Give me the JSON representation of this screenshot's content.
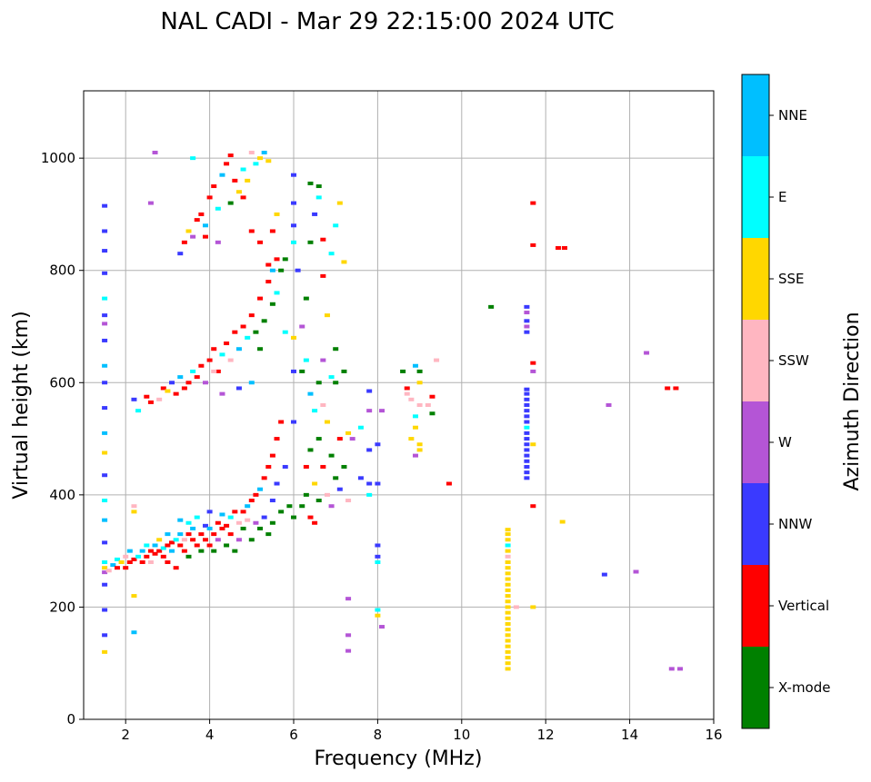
{
  "chart_data": {
    "type": "scatter",
    "title": "NAL CADI - Mar 29 22:15:00 2024 UTC",
    "xlabel": "Frequency (MHz)",
    "ylabel": "Virtual height (km)",
    "xlim": [
      1,
      16
    ],
    "ylim": [
      0,
      1120
    ],
    "xticks": [
      2,
      4,
      6,
      8,
      10,
      12,
      14,
      16
    ],
    "yticks": [
      0,
      200,
      400,
      600,
      800,
      1000
    ],
    "grid": true,
    "colorbar": {
      "label": "Azimuth Direction",
      "categories": [
        "X-mode",
        "Vertical",
        "NNW",
        "W",
        "SSW",
        "SSE",
        "E",
        "NNE"
      ],
      "colors": [
        "#008000",
        "#ff0000",
        "#3a3aff",
        "#b455d6",
        "#ffb6c1",
        "#ffd700",
        "#00ffff",
        "#00bfff"
      ]
    },
    "point_format": [
      "frequency_mhz",
      "virtual_height_km",
      "direction_index"
    ],
    "points": [
      [
        1.5,
        270,
        5
      ],
      [
        1.5,
        280,
        6
      ],
      [
        1.5,
        262,
        3
      ],
      [
        1.5,
        315,
        2
      ],
      [
        1.5,
        355,
        7
      ],
      [
        1.5,
        390,
        6
      ],
      [
        1.5,
        475,
        5
      ],
      [
        1.5,
        510,
        7
      ],
      [
        1.5,
        555,
        2
      ],
      [
        1.5,
        600,
        2
      ],
      [
        1.5,
        630,
        7
      ],
      [
        1.5,
        675,
        2
      ],
      [
        1.5,
        705,
        3
      ],
      [
        1.5,
        750,
        6
      ],
      [
        1.5,
        795,
        2
      ],
      [
        1.5,
        835,
        2
      ],
      [
        1.5,
        870,
        2
      ],
      [
        1.5,
        915,
        2
      ],
      [
        1.5,
        435,
        2
      ],
      [
        1.5,
        240,
        2
      ],
      [
        1.5,
        195,
        2
      ],
      [
        1.5,
        150,
        2
      ],
      [
        1.5,
        120,
        5
      ],
      [
        1.5,
        720,
        2
      ],
      [
        1.6,
        265,
        4
      ],
      [
        1.7,
        275,
        7
      ],
      [
        1.8,
        270,
        1
      ],
      [
        1.8,
        285,
        6
      ],
      [
        1.9,
        280,
        5
      ],
      [
        2.0,
        290,
        4
      ],
      [
        2.0,
        270,
        1
      ],
      [
        2.1,
        280,
        1
      ],
      [
        2.1,
        300,
        7
      ],
      [
        2.2,
        285,
        1
      ],
      [
        2.2,
        370,
        5
      ],
      [
        2.2,
        380,
        4
      ],
      [
        2.2,
        155,
        7
      ],
      [
        2.2,
        220,
        5
      ],
      [
        2.3,
        290,
        6
      ],
      [
        2.4,
        280,
        1
      ],
      [
        2.4,
        300,
        7
      ],
      [
        2.5,
        290,
        1
      ],
      [
        2.5,
        310,
        6
      ],
      [
        2.6,
        300,
        1
      ],
      [
        2.6,
        280,
        4
      ],
      [
        2.7,
        295,
        1
      ],
      [
        2.7,
        310,
        7
      ],
      [
        2.8,
        300,
        1
      ],
      [
        2.8,
        320,
        5
      ],
      [
        2.9,
        290,
        1
      ],
      [
        2.9,
        305,
        6
      ],
      [
        3.0,
        310,
        1
      ],
      [
        3.0,
        330,
        7
      ],
      [
        3.0,
        280,
        1
      ],
      [
        3.1,
        300,
        7
      ],
      [
        3.1,
        315,
        1
      ],
      [
        3.2,
        320,
        6
      ],
      [
        3.2,
        270,
        1
      ],
      [
        3.3,
        310,
        1
      ],
      [
        3.3,
        330,
        7
      ],
      [
        3.3,
        355,
        7
      ],
      [
        3.4,
        300,
        1
      ],
      [
        3.4,
        320,
        4
      ],
      [
        3.5,
        330,
        1
      ],
      [
        3.5,
        350,
        6
      ],
      [
        3.5,
        290,
        0
      ],
      [
        3.6,
        320,
        1
      ],
      [
        3.6,
        340,
        7
      ],
      [
        3.7,
        310,
        1
      ],
      [
        3.7,
        360,
        6
      ],
      [
        3.8,
        330,
        1
      ],
      [
        3.8,
        300,
        0
      ],
      [
        3.9,
        320,
        1
      ],
      [
        3.9,
        345,
        2
      ],
      [
        4.0,
        310,
        1
      ],
      [
        4.0,
        340,
        7
      ],
      [
        4.0,
        370,
        2
      ],
      [
        4.1,
        300,
        0
      ],
      [
        4.1,
        330,
        1
      ],
      [
        4.2,
        350,
        1
      ],
      [
        4.2,
        320,
        3
      ],
      [
        4.3,
        340,
        1
      ],
      [
        4.3,
        365,
        7
      ],
      [
        4.4,
        310,
        0
      ],
      [
        4.4,
        345,
        1
      ],
      [
        4.5,
        360,
        6
      ],
      [
        4.5,
        330,
        1
      ],
      [
        4.6,
        300,
        0
      ],
      [
        4.6,
        370,
        1
      ],
      [
        4.7,
        350,
        4
      ],
      [
        4.7,
        320,
        3
      ],
      [
        4.8,
        370,
        1
      ],
      [
        4.8,
        340,
        0
      ],
      [
        4.9,
        380,
        7
      ],
      [
        4.9,
        355,
        4
      ],
      [
        5.0,
        390,
        1
      ],
      [
        5.0,
        320,
        0
      ],
      [
        5.1,
        400,
        1
      ],
      [
        5.1,
        350,
        3
      ],
      [
        5.2,
        410,
        7
      ],
      [
        5.2,
        340,
        0
      ],
      [
        5.3,
        430,
        1
      ],
      [
        5.3,
        360,
        2
      ],
      [
        5.4,
        450,
        1
      ],
      [
        5.4,
        330,
        0
      ],
      [
        5.5,
        470,
        1
      ],
      [
        5.5,
        390,
        2
      ],
      [
        5.5,
        350,
        0
      ],
      [
        5.6,
        500,
        1
      ],
      [
        5.6,
        420,
        2
      ],
      [
        5.7,
        530,
        1
      ],
      [
        5.7,
        370,
        0
      ],
      [
        5.8,
        450,
        2
      ],
      [
        5.9,
        380,
        0
      ],
      [
        6.0,
        530,
        2
      ],
      [
        6.0,
        360,
        0
      ],
      [
        6.2,
        380,
        0
      ],
      [
        6.3,
        400,
        0
      ],
      [
        6.3,
        450,
        1
      ],
      [
        6.4,
        480,
        0
      ],
      [
        6.4,
        360,
        1
      ],
      [
        6.5,
        420,
        5
      ],
      [
        6.5,
        550,
        6
      ],
      [
        6.6,
        390,
        0
      ],
      [
        6.6,
        500,
        0
      ],
      [
        6.6,
        600,
        0
      ],
      [
        6.7,
        450,
        1
      ],
      [
        6.7,
        640,
        3
      ],
      [
        6.8,
        400,
        4
      ],
      [
        6.8,
        530,
        5
      ],
      [
        6.9,
        470,
        0
      ],
      [
        6.9,
        380,
        3
      ],
      [
        7.0,
        430,
        0
      ],
      [
        7.0,
        600,
        0
      ],
      [
        7.1,
        500,
        1
      ],
      [
        7.1,
        410,
        2
      ],
      [
        7.2,
        450,
        0
      ],
      [
        7.3,
        390,
        4
      ],
      [
        7.3,
        510,
        5
      ],
      [
        6.2,
        620,
        0
      ],
      [
        6.4,
        580,
        7
      ],
      [
        6.5,
        350,
        1
      ],
      [
        6.7,
        560,
        4
      ],
      [
        7.0,
        660,
        0
      ],
      [
        7.2,
        620,
        0
      ],
      [
        6.9,
        610,
        6
      ],
      [
        6.3,
        640,
        6
      ],
      [
        7.4,
        500,
        3
      ],
      [
        7.6,
        430,
        2
      ],
      [
        7.6,
        520,
        6
      ],
      [
        7.8,
        420,
        2
      ],
      [
        7.8,
        480,
        2
      ],
      [
        7.8,
        585,
        2
      ],
      [
        7.8,
        550,
        3
      ],
      [
        7.8,
        400,
        6
      ],
      [
        8.0,
        490,
        2
      ],
      [
        8.0,
        420,
        2
      ],
      [
        8.1,
        550,
        3
      ],
      [
        8.0,
        310,
        2
      ],
      [
        8.0,
        290,
        2
      ],
      [
        8.0,
        280,
        6
      ],
      [
        8.0,
        195,
        6
      ],
      [
        8.0,
        185,
        5
      ],
      [
        8.1,
        165,
        3
      ],
      [
        7.3,
        215,
        3
      ],
      [
        7.3,
        150,
        3
      ],
      [
        7.3,
        122,
        3
      ],
      [
        2.2,
        570,
        2
      ],
      [
        2.3,
        550,
        6
      ],
      [
        2.5,
        575,
        1
      ],
      [
        2.6,
        565,
        1
      ],
      [
        2.8,
        570,
        4
      ],
      [
        2.9,
        590,
        1
      ],
      [
        3.0,
        585,
        5
      ],
      [
        3.1,
        600,
        2
      ],
      [
        3.2,
        580,
        1
      ],
      [
        3.3,
        610,
        7
      ],
      [
        3.4,
        590,
        1
      ],
      [
        3.5,
        600,
        1
      ],
      [
        3.6,
        620,
        6
      ],
      [
        3.7,
        610,
        1
      ],
      [
        3.8,
        630,
        1
      ],
      [
        3.9,
        600,
        3
      ],
      [
        4.0,
        640,
        1
      ],
      [
        4.1,
        660,
        1
      ],
      [
        4.2,
        620,
        1
      ],
      [
        4.3,
        650,
        6
      ],
      [
        4.4,
        670,
        1
      ],
      [
        4.5,
        640,
        4
      ],
      [
        4.6,
        690,
        1
      ],
      [
        4.7,
        660,
        7
      ],
      [
        4.8,
        700,
        1
      ],
      [
        4.9,
        680,
        6
      ],
      [
        5.0,
        720,
        1
      ],
      [
        5.1,
        690,
        0
      ],
      [
        5.2,
        750,
        1
      ],
      [
        5.3,
        710,
        0
      ],
      [
        5.4,
        780,
        1
      ],
      [
        5.5,
        740,
        0
      ],
      [
        5.6,
        760,
        6
      ],
      [
        5.7,
        800,
        0
      ],
      [
        5.8,
        820,
        0
      ],
      [
        6.0,
        850,
        6
      ],
      [
        6.1,
        800,
        2
      ],
      [
        6.2,
        700,
        3
      ],
      [
        6.3,
        750,
        0
      ],
      [
        6.4,
        850,
        0
      ],
      [
        6.5,
        900,
        2
      ],
      [
        6.6,
        950,
        0
      ],
      [
        6.7,
        790,
        1
      ],
      [
        6.8,
        720,
        5
      ],
      [
        6.9,
        830,
        6
      ],
      [
        7.0,
        880,
        6
      ],
      [
        7.1,
        920,
        5
      ],
      [
        7.2,
        815,
        5
      ],
      [
        6.4,
        955,
        0
      ],
      [
        6.6,
        930,
        6
      ],
      [
        6.7,
        855,
        1
      ],
      [
        5.5,
        800,
        7
      ],
      [
        5.2,
        660,
        0
      ],
      [
        5.8,
        690,
        6
      ],
      [
        6.0,
        620,
        2
      ],
      [
        6.0,
        680,
        5
      ],
      [
        4.3,
        580,
        3
      ],
      [
        4.1,
        620,
        4
      ],
      [
        4.7,
        590,
        2
      ],
      [
        5.0,
        600,
        7
      ],
      [
        3.3,
        830,
        2
      ],
      [
        3.4,
        850,
        1
      ],
      [
        3.5,
        870,
        5
      ],
      [
        3.6,
        860,
        3
      ],
      [
        3.7,
        890,
        1
      ],
      [
        3.8,
        900,
        1
      ],
      [
        3.9,
        880,
        7
      ],
      [
        4.0,
        930,
        1
      ],
      [
        4.1,
        950,
        1
      ],
      [
        4.2,
        910,
        6
      ],
      [
        4.3,
        970,
        7
      ],
      [
        4.4,
        990,
        1
      ],
      [
        4.5,
        1005,
        1
      ],
      [
        4.6,
        960,
        1
      ],
      [
        4.7,
        940,
        5
      ],
      [
        4.8,
        980,
        6
      ],
      [
        4.9,
        960,
        5
      ],
      [
        5.0,
        1010,
        4
      ],
      [
        5.1,
        990,
        6
      ],
      [
        5.2,
        1000,
        5
      ],
      [
        5.3,
        1010,
        7
      ],
      [
        5.4,
        995,
        5
      ],
      [
        4.5,
        920,
        0
      ],
      [
        4.8,
        930,
        1
      ],
      [
        5.0,
        870,
        1
      ],
      [
        5.2,
        850,
        1
      ],
      [
        5.4,
        810,
        1
      ],
      [
        5.6,
        820,
        1
      ],
      [
        5.5,
        870,
        1
      ],
      [
        5.6,
        900,
        5
      ],
      [
        4.2,
        850,
        3
      ],
      [
        3.9,
        860,
        1
      ],
      [
        6.0,
        970,
        2
      ],
      [
        6.0,
        920,
        2
      ],
      [
        6.0,
        880,
        2
      ],
      [
        2.7,
        1010,
        3
      ],
      [
        2.6,
        920,
        3
      ],
      [
        3.6,
        1000,
        6
      ],
      [
        8.6,
        620,
        0
      ],
      [
        8.7,
        580,
        4
      ],
      [
        8.8,
        570,
        4
      ],
      [
        8.8,
        500,
        5
      ],
      [
        8.9,
        540,
        6
      ],
      [
        8.9,
        520,
        5
      ],
      [
        9.0,
        600,
        5
      ],
      [
        9.0,
        620,
        0
      ],
      [
        9.0,
        490,
        5
      ],
      [
        9.0,
        480,
        5
      ],
      [
        8.9,
        470,
        3
      ],
      [
        9.2,
        560,
        4
      ],
      [
        9.3,
        575,
        1
      ],
      [
        9.3,
        545,
        0
      ],
      [
        9.4,
        640,
        4
      ],
      [
        8.9,
        630,
        7
      ],
      [
        9.0,
        560,
        4
      ],
      [
        8.7,
        590,
        1
      ],
      [
        9.7,
        420,
        1
      ],
      [
        11.1,
        90,
        5
      ],
      [
        11.1,
        100,
        5
      ],
      [
        11.1,
        110,
        5
      ],
      [
        11.1,
        120,
        5
      ],
      [
        11.1,
        130,
        5
      ],
      [
        11.1,
        140,
        5
      ],
      [
        11.1,
        150,
        5
      ],
      [
        11.1,
        160,
        5
      ],
      [
        11.1,
        170,
        5
      ],
      [
        11.1,
        180,
        5
      ],
      [
        11.1,
        190,
        5
      ],
      [
        11.1,
        200,
        5
      ],
      [
        11.1,
        210,
        5
      ],
      [
        11.1,
        220,
        5
      ],
      [
        11.1,
        230,
        5
      ],
      [
        11.1,
        240,
        5
      ],
      [
        11.1,
        250,
        5
      ],
      [
        11.1,
        260,
        5
      ],
      [
        11.1,
        270,
        5
      ],
      [
        11.1,
        280,
        5
      ],
      [
        11.1,
        290,
        4
      ],
      [
        11.1,
        300,
        5
      ],
      [
        11.1,
        310,
        6
      ],
      [
        11.1,
        320,
        5
      ],
      [
        11.1,
        330,
        5
      ],
      [
        11.1,
        338,
        5
      ],
      [
        11.55,
        430,
        2
      ],
      [
        11.55,
        440,
        2
      ],
      [
        11.55,
        450,
        2
      ],
      [
        11.55,
        460,
        2
      ],
      [
        11.55,
        470,
        2
      ],
      [
        11.55,
        480,
        2
      ],
      [
        11.55,
        490,
        2
      ],
      [
        11.55,
        500,
        2
      ],
      [
        11.55,
        510,
        2
      ],
      [
        11.55,
        520,
        6
      ],
      [
        11.55,
        530,
        2
      ],
      [
        11.55,
        540,
        2
      ],
      [
        11.55,
        550,
        2
      ],
      [
        11.55,
        560,
        2
      ],
      [
        11.55,
        570,
        2
      ],
      [
        11.55,
        580,
        2
      ],
      [
        11.55,
        588,
        2
      ],
      [
        11.55,
        690,
        2
      ],
      [
        11.55,
        700,
        3
      ],
      [
        11.55,
        710,
        2
      ],
      [
        11.55,
        725,
        3
      ],
      [
        11.55,
        735,
        2
      ],
      [
        11.7,
        920,
        1
      ],
      [
        11.7,
        845,
        1
      ],
      [
        12.3,
        840,
        1
      ],
      [
        12.45,
        840,
        1
      ],
      [
        10.7,
        735,
        0
      ],
      [
        11.7,
        635,
        1
      ],
      [
        11.7,
        620,
        3
      ],
      [
        14.4,
        653,
        3
      ],
      [
        13.5,
        560,
        3
      ],
      [
        14.9,
        590,
        1
      ],
      [
        15.1,
        590,
        1
      ],
      [
        13.4,
        258,
        2
      ],
      [
        14.15,
        263,
        3
      ],
      [
        15.0,
        90,
        3
      ],
      [
        15.2,
        90,
        3
      ],
      [
        12.4,
        352,
        5
      ],
      [
        11.7,
        380,
        1
      ],
      [
        11.7,
        490,
        5
      ],
      [
        11.7,
        200,
        5
      ],
      [
        11.3,
        200,
        4
      ]
    ]
  }
}
